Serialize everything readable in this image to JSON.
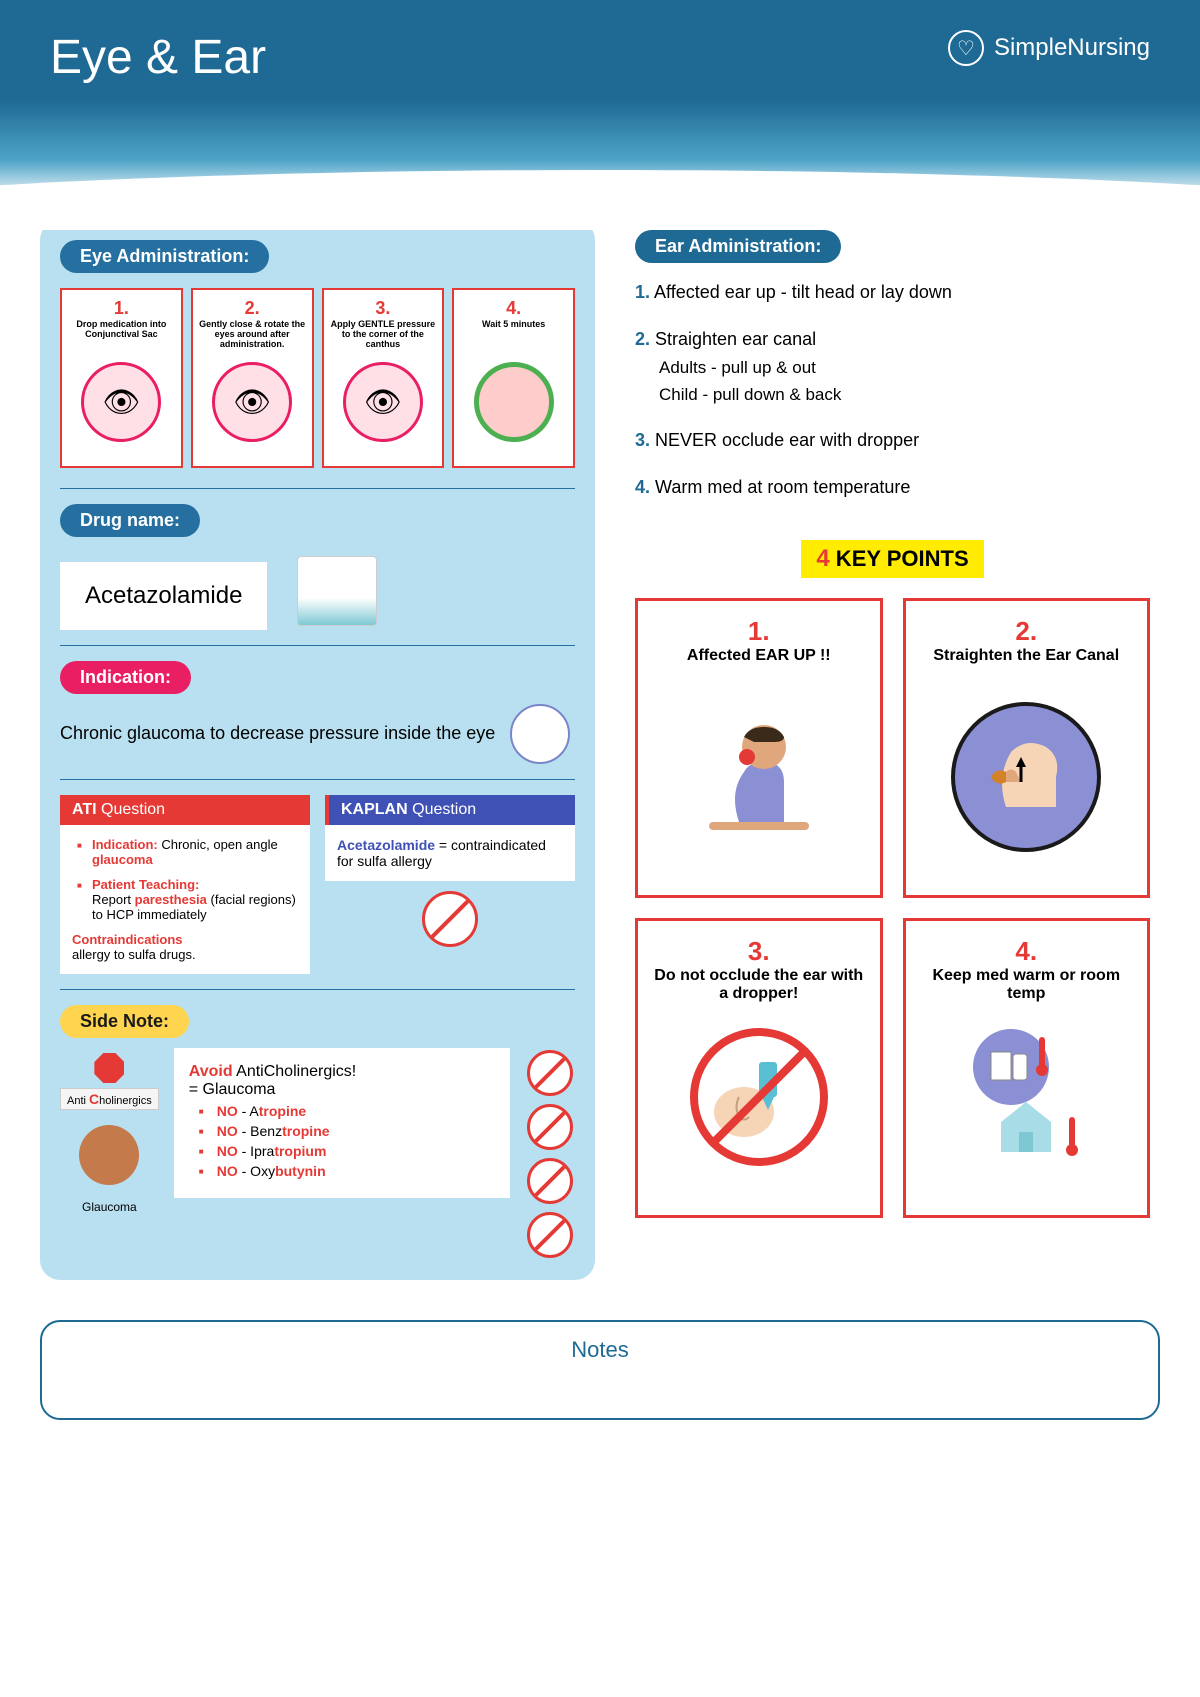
{
  "header": {
    "title": "Eye & Ear",
    "brand": "SimpleNursing"
  },
  "eye_admin": {
    "header": "Eye Administration:",
    "steps": [
      {
        "num": "1.",
        "text": "Drop medication into Conjunctival Sac"
      },
      {
        "num": "2.",
        "text": "Gently close & rotate the eyes around after administration."
      },
      {
        "num": "3.",
        "text": "Apply GENTLE pressure to the corner of the canthus"
      },
      {
        "num": "4.",
        "text": "Wait 5 minutes"
      }
    ]
  },
  "drug": {
    "header": "Drug name:",
    "name": "Acetazolamide"
  },
  "indication": {
    "header": "Indication:",
    "text": "Chronic glaucoma to decrease pressure inside the eye"
  },
  "ati": {
    "header_bold": "ATI",
    "header_thin": " Question",
    "ind_label": "Indication:",
    "ind_text": " Chronic, open angle ",
    "ind_bold": "glaucoma",
    "pt_label": "Patient Teaching:",
    "pt_text1": " Report ",
    "pt_bold": "paresthesia",
    "pt_text2": " (facial regions) to HCP immediately",
    "contra_label": "Contraindications",
    "contra_text": "allergy to sulfa drugs."
  },
  "kaplan": {
    "header_bold": "KAPLAN",
    "header_thin": " Question",
    "drug": "Acetazolamide",
    "text": " = contraindicated for sulfa allergy"
  },
  "sidenote": {
    "header": "Side Note:",
    "anti_prefix": "Anti ",
    "anti_c": "C",
    "anti_suffix": "holinergics",
    "glaucoma": "Glaucoma",
    "avoid_bold": "Avoid",
    "avoid_text": " AntiCholinergics!",
    "equals": "= Glaucoma",
    "drugs": [
      {
        "no": "NO",
        "pre": " - A",
        "bold": "tropine"
      },
      {
        "no": "NO",
        "pre": " - Benz",
        "bold": "tropine"
      },
      {
        "no": "NO",
        "pre": " - Ipra",
        "bold": "tropium"
      },
      {
        "no": "NO",
        "pre": " - Oxy",
        "bold": "butynin"
      }
    ]
  },
  "ear_admin": {
    "header": "Ear Administration:",
    "items": [
      {
        "num": "1.",
        "text": " Affected ear up - tilt head or lay down",
        "sub": []
      },
      {
        "num": "2.",
        "text": " Straighten ear canal",
        "sub": [
          "Adults - pull up & out",
          "Child - pull down & back"
        ]
      },
      {
        "num": "3.",
        "text": " NEVER occlude ear with dropper",
        "sub": []
      },
      {
        "num": "4.",
        "text": " Warm med at room temperature",
        "sub": []
      }
    ]
  },
  "keypoints": {
    "num": "4",
    "header": " KEY POINTS",
    "cards": [
      {
        "num": "1.",
        "text": "Affected EAR UP !!"
      },
      {
        "num": "2.",
        "text": "Straighten the Ear Canal"
      },
      {
        "num": "3.",
        "text": "Do not occlude the ear with a dropper!"
      },
      {
        "num": "4.",
        "text": "Keep med warm or room temp"
      }
    ]
  },
  "notes": "Notes",
  "colors": {
    "header_bg": "#1e6a94",
    "light_blue": "#b8e0f0",
    "red": "#e53935",
    "pink": "#e91e63",
    "yellow": "#ffd54f",
    "bright_yellow": "#ffec00",
    "blue_pill": "#2570a0",
    "indigo": "#3f51b5"
  }
}
